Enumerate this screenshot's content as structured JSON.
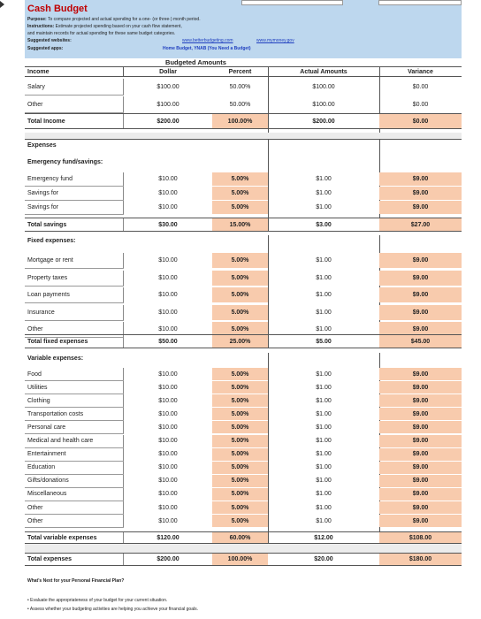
{
  "header": {
    "title": "Cash Budget",
    "purpose_label": "Purpose:",
    "purpose": "To compare projected and actual spending for a one- (or three-) month period.",
    "instructions_label": "Instructions:",
    "instructions_1": "Estimate projected spending based on your cash flow statement,",
    "instructions_2": "and maintain records for actual spending for these same budget categories.",
    "websites_label": "Suggested websites:",
    "website_1": "www.betterbudgeting.com",
    "website_2": "www.mymoney.gov",
    "apps_label": "Suggested apps:",
    "apps": "Home Budget, YNAB (You Need a Budget)"
  },
  "columns": {
    "budgeted": "Budgeted Amounts",
    "category": "Income",
    "dollar": "Dollar",
    "percent": "Percent",
    "actual": "Actual Amounts",
    "variance": "Variance"
  },
  "income": {
    "rows": [
      {
        "label": "Salary",
        "dollar": "$100.00",
        "percent": "50.00%",
        "actual": "$100.00",
        "variance": "$0.00"
      },
      {
        "label": "Other",
        "dollar": "$100.00",
        "percent": "50.00%",
        "actual": "$100.00",
        "variance": "$0.00"
      }
    ],
    "total": {
      "label": "Total Income",
      "dollar": "$200.00",
      "percent": "100.00%",
      "actual": "$200.00",
      "variance": "$0.00"
    }
  },
  "expenses": {
    "title": "Expenses",
    "emergency": {
      "title": "Emergency fund/savings:",
      "rows": [
        {
          "label": "Emergency fund",
          "dollar": "$10.00",
          "percent": "5.00%",
          "actual": "$1.00",
          "variance": "$9.00"
        },
        {
          "label": "Savings for",
          "dollar": "$10.00",
          "percent": "5.00%",
          "actual": "$1.00",
          "variance": "$9.00"
        },
        {
          "label": "Savings for",
          "dollar": "$10.00",
          "percent": "5.00%",
          "actual": "$1.00",
          "variance": "$9.00"
        }
      ],
      "total": {
        "label": "Total savings",
        "dollar": "$30.00",
        "percent": "15.00%",
        "actual": "$3.00",
        "variance": "$27.00"
      }
    },
    "fixed": {
      "title": "Fixed expenses:",
      "rows": [
        {
          "label": "Mortgage or rent",
          "dollar": "$10.00",
          "percent": "5.00%",
          "actual": "$1.00",
          "variance": "$9.00"
        },
        {
          "label": "Property taxes",
          "dollar": "$10.00",
          "percent": "5.00%",
          "actual": "$1.00",
          "variance": "$9.00"
        },
        {
          "label": "Loan payments",
          "dollar": "$10.00",
          "percent": "5.00%",
          "actual": "$1.00",
          "variance": "$9.00"
        },
        {
          "label": "Insurance",
          "dollar": "$10.00",
          "percent": "5.00%",
          "actual": "$1.00",
          "variance": "$9.00"
        },
        {
          "label": "Other",
          "dollar": "$10.00",
          "percent": "5.00%",
          "actual": "$1.00",
          "variance": "$9.00"
        }
      ],
      "total": {
        "label": "Total fixed expenses",
        "dollar": "$50.00",
        "percent": "25.00%",
        "actual": "$5.00",
        "variance": "$45.00"
      }
    },
    "variable": {
      "title": "Variable expenses:",
      "rows": [
        {
          "label": "Food",
          "dollar": "$10.00",
          "percent": "5.00%",
          "actual": "$1.00",
          "variance": "$9.00"
        },
        {
          "label": "Utilities",
          "dollar": "$10.00",
          "percent": "5.00%",
          "actual": "$1.00",
          "variance": "$9.00"
        },
        {
          "label": "Clothing",
          "dollar": "$10.00",
          "percent": "5.00%",
          "actual": "$1.00",
          "variance": "$9.00"
        },
        {
          "label": "Transportation costs",
          "dollar": "$10.00",
          "percent": "5.00%",
          "actual": "$1.00",
          "variance": "$9.00"
        },
        {
          "label": "Personal care",
          "dollar": "$10.00",
          "percent": "5.00%",
          "actual": "$1.00",
          "variance": "$9.00"
        },
        {
          "label": "Medical and health care",
          "dollar": "$10.00",
          "percent": "5.00%",
          "actual": "$1.00",
          "variance": "$9.00"
        },
        {
          "label": "Entertainment",
          "dollar": "$10.00",
          "percent": "5.00%",
          "actual": "$1.00",
          "variance": "$9.00"
        },
        {
          "label": "Education",
          "dollar": "$10.00",
          "percent": "5.00%",
          "actual": "$1.00",
          "variance": "$9.00"
        },
        {
          "label": "Gifts/donations",
          "dollar": "$10.00",
          "percent": "5.00%",
          "actual": "$1.00",
          "variance": "$9.00"
        },
        {
          "label": "Miscellaneous",
          "dollar": "$10.00",
          "percent": "5.00%",
          "actual": "$1.00",
          "variance": "$9.00"
        },
        {
          "label": "Other",
          "dollar": "$10.00",
          "percent": "5.00%",
          "actual": "$1.00",
          "variance": "$9.00"
        },
        {
          "label": "Other",
          "dollar": "$10.00",
          "percent": "5.00%",
          "actual": "$1.00",
          "variance": "$9.00"
        }
      ],
      "total": {
        "label": "Total variable expenses",
        "dollar": "$120.00",
        "percent": "60.00%",
        "actual": "$12.00",
        "variance": "$108.00"
      }
    },
    "total": {
      "label": "Total expenses",
      "dollar": "$200.00",
      "percent": "100.00%",
      "actual": "$20.00",
      "variance": "$180.00"
    }
  },
  "footer": {
    "heading": "What's Next for your Personal Financial Plan?",
    "bullet_1": "Evaluate the appropriateness of your budget for your current situation.",
    "bullet_2": "Assess whether your budgeting activities are helping you achieve your financial goals."
  },
  "colors": {
    "header_bg": "#bdd7ee",
    "highlight": "#f8cbad",
    "title": "#c00000",
    "link": "#1f3fbf"
  }
}
